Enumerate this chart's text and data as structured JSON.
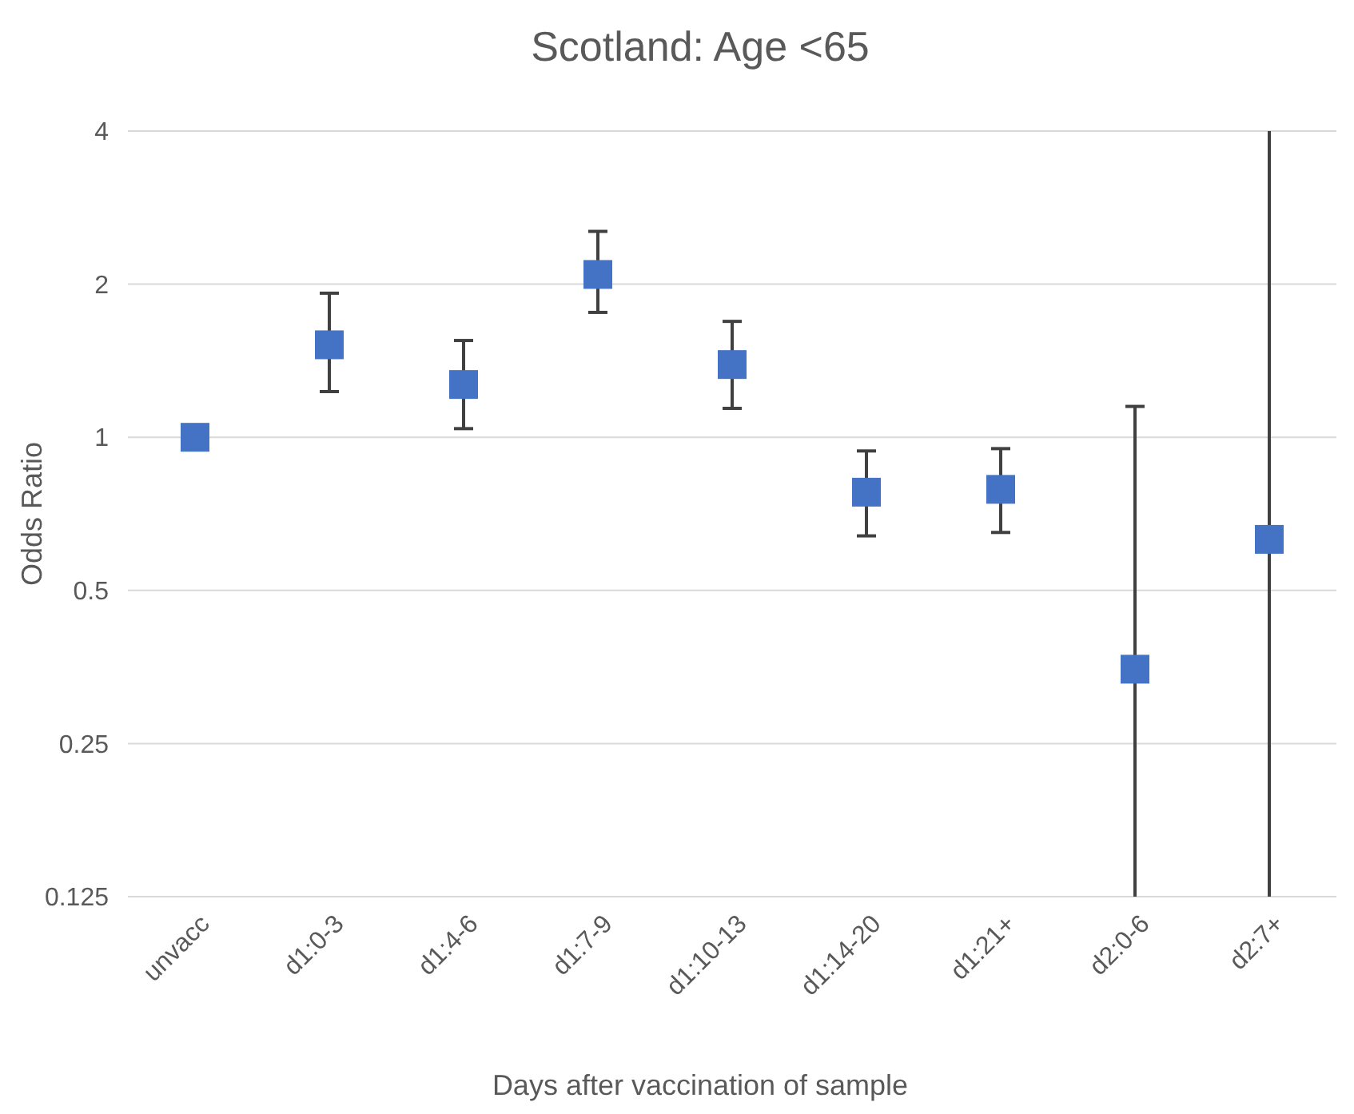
{
  "chart_data": {
    "type": "scatter",
    "title": "Scotland: Age <65",
    "xlabel": "Days after vaccination of sample",
    "ylabel": "Odds Ratio",
    "categories": [
      "unvacc",
      "d1:0-3",
      "d1:4-6",
      "d1:7-9",
      "d1:10-13",
      "d1:14-20",
      "d1:21+",
      "d2:0-6",
      "d2:7+"
    ],
    "series": [
      {
        "color": "#4472c4",
        "values": [
          1,
          1.52,
          1.27,
          2.09,
          1.39,
          0.78,
          0.79,
          0.35,
          0.63
        ],
        "errors": [
          null,
          [
            1.23,
            1.92
          ],
          [
            1.04,
            1.55
          ],
          [
            1.76,
            2.54
          ],
          [
            1.14,
            1.69
          ],
          [
            0.64,
            0.94
          ],
          [
            0.65,
            0.95
          ],
          [
            0.125,
            1.15
          ],
          [
            0.125,
            4
          ]
        ]
      }
    ],
    "log": true,
    "ylim": [
      0.125,
      4
    ],
    "yticks": [
      0.125,
      0.25,
      0.5,
      1,
      2,
      4
    ],
    "grid": "y",
    "marker": "square"
  }
}
